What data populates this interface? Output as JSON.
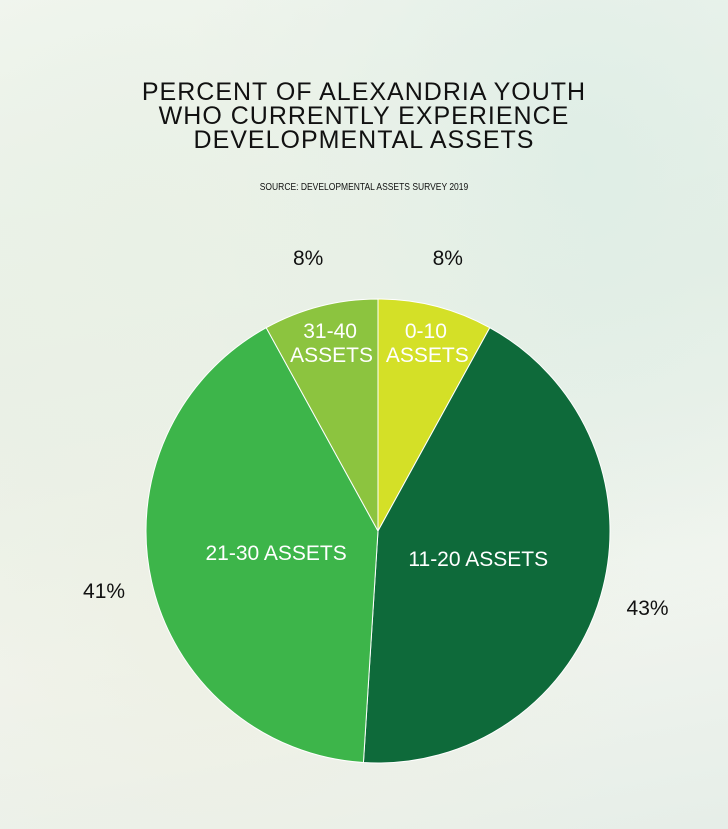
{
  "chart_data": {
    "type": "pie",
    "title": "PERCENT OF ALEXANDRIA YOUTH WHO CURRENTLY EXPERIENCE DEVELOPMENTAL ASSETS",
    "subtitle": "SOURCE: DEVELOPMENTAL ASSETS SURVEY 2019",
    "categories": [
      "0-10 ASSETS",
      "11-20 ASSETS",
      "21-30 ASSETS",
      "31-40 ASSETS"
    ],
    "values": [
      8,
      43,
      41,
      8
    ],
    "value_labels": [
      "8%",
      "43%",
      "41%",
      "8%"
    ],
    "colors": [
      "#d4e027",
      "#0e6a3a",
      "#3db54a",
      "#8cc43f"
    ]
  }
}
